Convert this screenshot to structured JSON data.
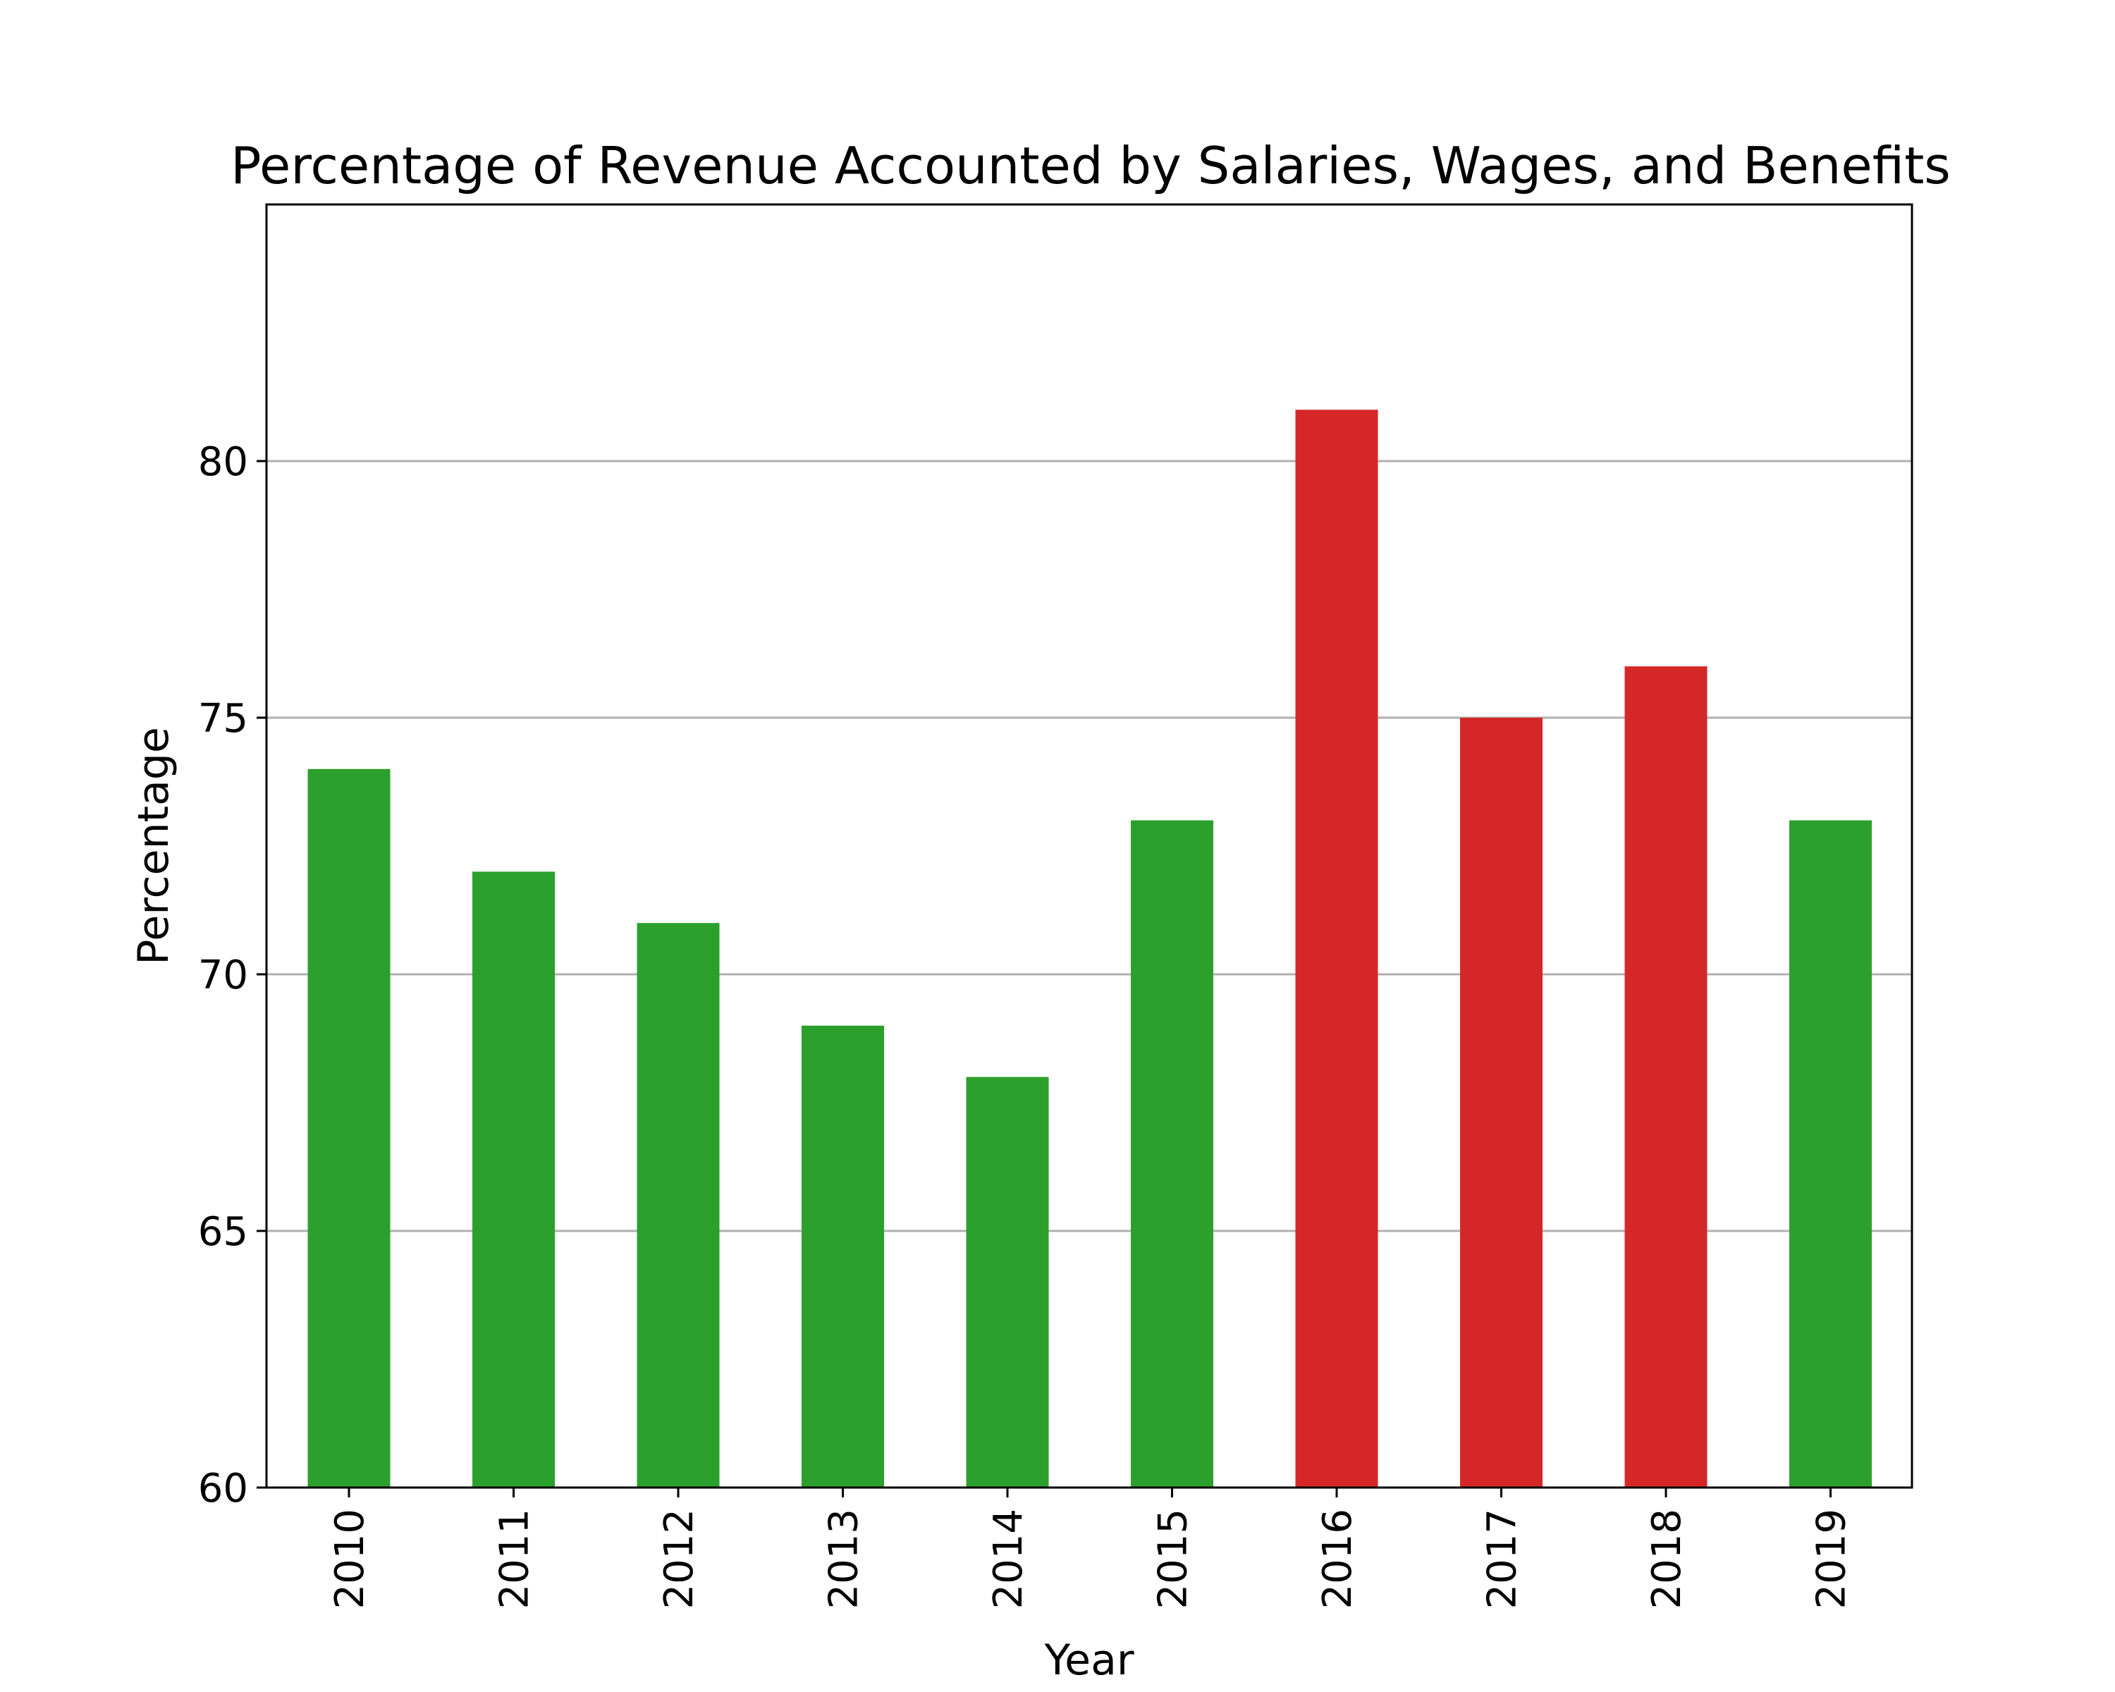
{
  "chart_data": {
    "type": "bar",
    "title": "Percentage of Revenue Accounted by Salaries, Wages, and Benefits",
    "xlabel": "Year",
    "ylabel": "Percentage",
    "categories": [
      "2010",
      "2011",
      "2012",
      "2013",
      "2014",
      "2015",
      "2016",
      "2017",
      "2018",
      "2019"
    ],
    "values": [
      74,
      72,
      71,
      69,
      68,
      73,
      81,
      75,
      76,
      73
    ],
    "bar_colors": [
      "#2ca02c",
      "#2ca02c",
      "#2ca02c",
      "#2ca02c",
      "#2ca02c",
      "#2ca02c",
      "#d62728",
      "#d62728",
      "#d62728",
      "#2ca02c"
    ],
    "ylim": [
      60,
      85
    ],
    "yticks": [
      60,
      65,
      70,
      75,
      80
    ],
    "grid": "y",
    "legend": "none"
  }
}
